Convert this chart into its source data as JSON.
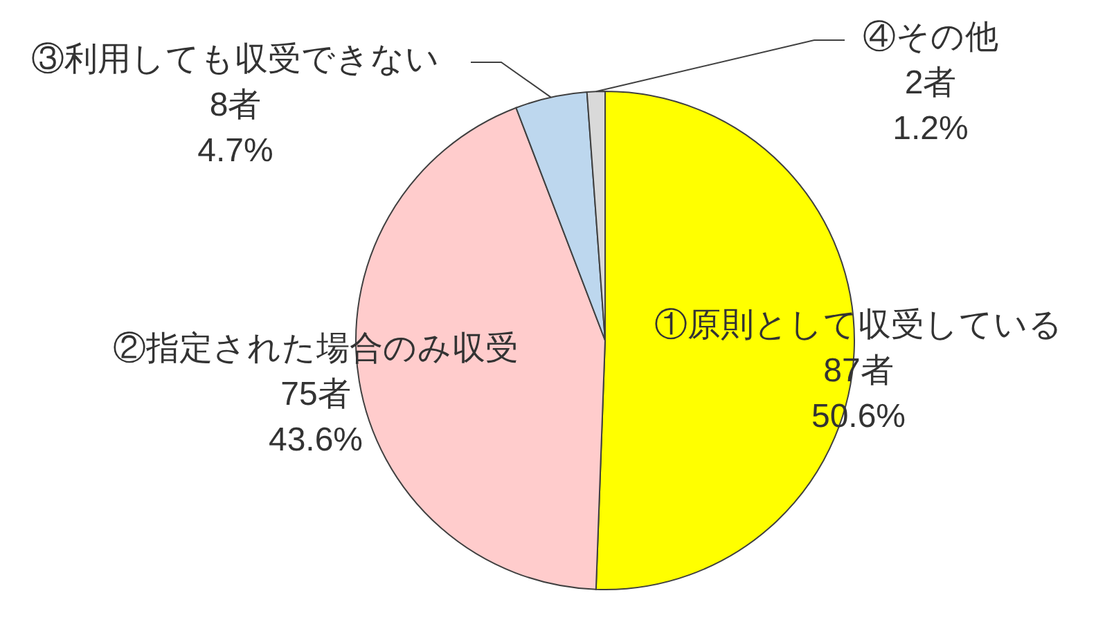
{
  "chart_data": {
    "type": "pie",
    "categories": [
      "①原則として収受している",
      "②指定された場合のみ収受",
      "③利用しても収受できない",
      "④その他"
    ],
    "values": [
      87,
      75,
      8,
      2
    ],
    "value_labels": [
      "87者\n50.6%",
      "75者\n43.6%",
      "8者\n4.7%",
      "2者\n1.2%"
    ],
    "colors": [
      "#ffff00",
      "#ffcccc",
      "#bdd7ee",
      "#d9d9d9"
    ]
  }
}
